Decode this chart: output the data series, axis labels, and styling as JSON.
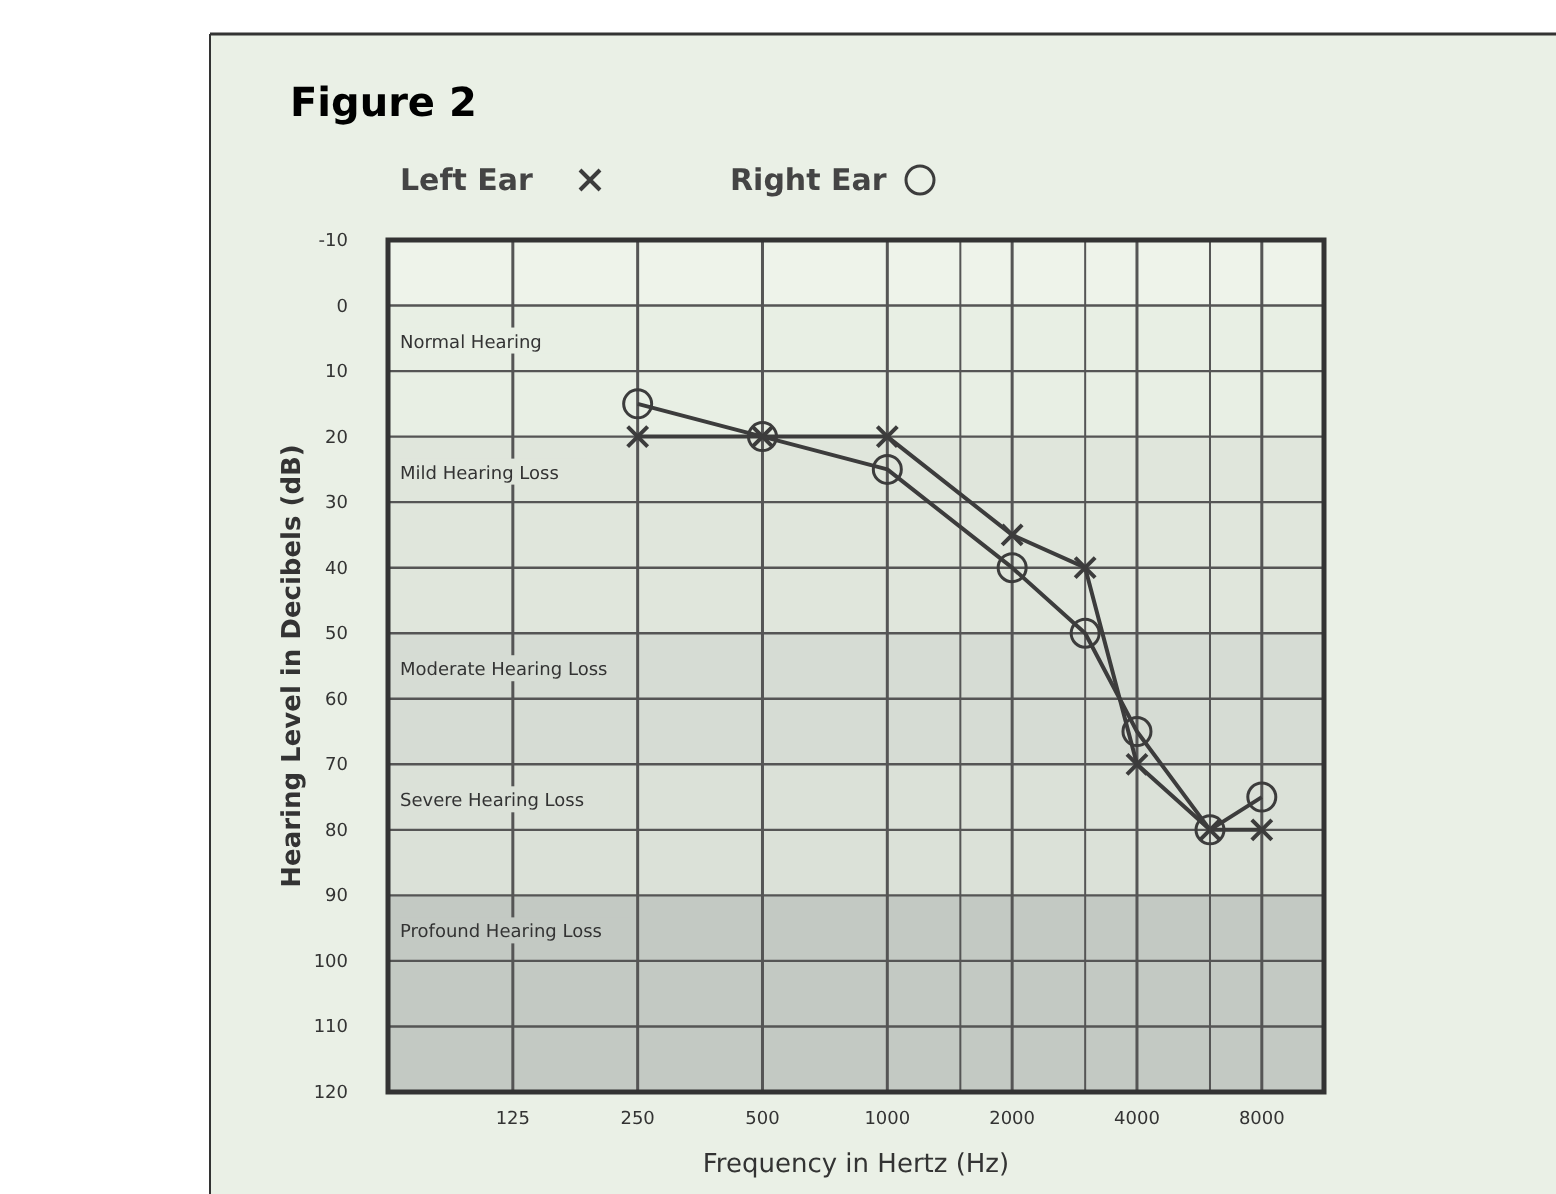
{
  "chart_data": {
    "type": "line",
    "title": "Figure 2",
    "xlabel": "Frequency in Hertz (Hz)",
    "ylabel": "Hearing Level in Decibels (dB)",
    "log": "x",
    "xlim": [
      62.5,
      11300
    ],
    "ylim": [
      120,
      -10
    ],
    "xticks": [
      125,
      250,
      500,
      1000,
      {
        "value": 1500,
        "label": null
      },
      2000,
      {
        "value": 3000,
        "label": null
      },
      4000,
      {
        "value": 6000,
        "label": null
      },
      8000
    ],
    "yticks": [
      -10,
      0,
      10,
      20,
      30,
      40,
      50,
      60,
      70,
      80,
      90,
      100,
      110,
      120
    ],
    "grid": true,
    "legend": "top left",
    "line_style": "solid",
    "series": [
      {
        "name": "Left Ear",
        "color": "#3c3c3c",
        "marker": "cross",
        "x": [
          250,
          500,
          1000,
          2000,
          3000,
          4000,
          6000,
          8000
        ],
        "values": [
          20,
          20,
          20,
          35,
          40,
          70,
          80,
          80
        ]
      },
      {
        "name": "Right Ear",
        "color": "#3c3c3c",
        "marker": "circle",
        "x": [
          250,
          500,
          1000,
          2000,
          3000,
          4000,
          6000,
          8000
        ],
        "values": [
          15,
          20,
          25,
          40,
          50,
          65,
          80,
          75
        ]
      }
    ],
    "bands": [
      {
        "axis": "y",
        "from": 0,
        "to": 20,
        "label": "Normal Hearing",
        "color": "#e8efe4"
      },
      {
        "axis": "y",
        "from": 20,
        "to": 50,
        "label": "Mild Hearing Loss",
        "color": "#e0e6dc"
      },
      {
        "axis": "y",
        "from": 50,
        "to": 70,
        "label": "Moderate Hearing Loss",
        "color": "#d6dcd4"
      },
      {
        "axis": "y",
        "from": 70,
        "to": 90,
        "label": "Severe Hearing Loss",
        "color": "#dbe1d8"
      },
      {
        "axis": "y",
        "from": 90,
        "to": 120,
        "label": "Profound Hearing Loss",
        "color": "#c3c9c3"
      }
    ]
  }
}
